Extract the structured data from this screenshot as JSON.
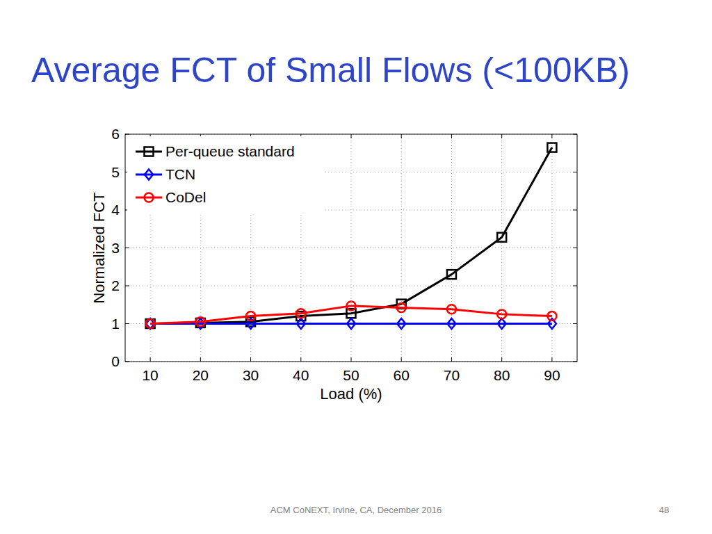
{
  "slide": {
    "footer": "ACM CoNEXT, Irvine, CA, December 2016",
    "page": 48
  },
  "chart_data": {
    "type": "line",
    "title": "Average FCT of Small Flows (<100KB)",
    "xlabel": "Load (%)",
    "ylabel": "Normalized FCT",
    "x": [
      10,
      20,
      30,
      40,
      50,
      60,
      70,
      80,
      90
    ],
    "series": [
      {
        "name": "Per-queue standard",
        "color": "#000000",
        "marker": "square",
        "values": [
          1.0,
          1.02,
          1.05,
          1.2,
          1.27,
          1.52,
          2.3,
          3.28,
          5.65
        ]
      },
      {
        "name": "TCN",
        "color": "#0000ff",
        "marker": "diamond",
        "values": [
          1.0,
          1.0,
          1.0,
          1.0,
          1.0,
          1.0,
          1.0,
          1.0,
          1.0
        ]
      },
      {
        "name": "CoDel",
        "color": "#ff0000",
        "marker": "circle",
        "values": [
          1.0,
          1.05,
          1.2,
          1.27,
          1.47,
          1.42,
          1.38,
          1.25,
          1.2
        ]
      }
    ],
    "xlim": [
      5,
      95
    ],
    "xticks": [
      10,
      20,
      30,
      40,
      50,
      60,
      70,
      80,
      90
    ],
    "ylim": [
      0,
      6
    ],
    "yticks": [
      0,
      1,
      2,
      3,
      4,
      5,
      6
    ],
    "grid": true,
    "legend": "top-left"
  }
}
